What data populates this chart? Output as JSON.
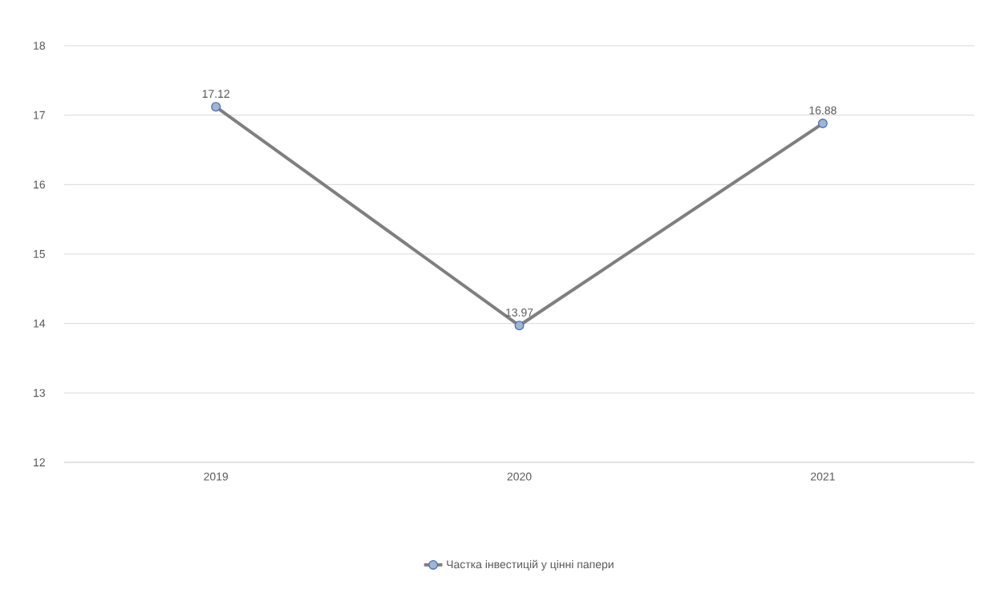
{
  "chart_data": {
    "type": "line",
    "categories": [
      "2019",
      "2020",
      "2021"
    ],
    "series": [
      {
        "name": "Частка  інвестицій у цінні папери",
        "color": "#7f7f7f",
        "values": [
          17.12,
          13.97,
          16.88
        ]
      }
    ],
    "ylim": [
      12,
      18
    ],
    "yticks": [
      12,
      13,
      14,
      15,
      16,
      17,
      18
    ],
    "grid": "y",
    "legend": "bottom",
    "marker": "circle",
    "line_style": "solid",
    "data_labels": true
  }
}
